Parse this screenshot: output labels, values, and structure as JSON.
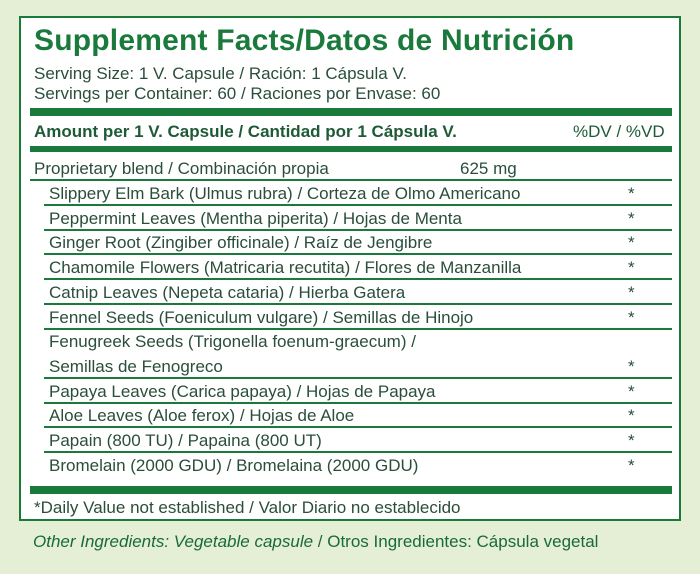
{
  "title": "Supplement Facts/Datos de Nutrición",
  "serving_size": "Serving Size: 1 V. Capsule / Ración: 1 Cápsula V.",
  "servings_per_container": "Servings per Container: 60 / Raciones por Envase: 60",
  "header": {
    "amount": "Amount per 1 V. Capsule / Cantidad por 1 Cápsula V.",
    "dv": "%DV / %VD"
  },
  "blend": {
    "name": "Proprietary blend / Combinación propia",
    "amount": "625 mg"
  },
  "ingredients": [
    {
      "name": "Slippery Elm Bark (Ulmus rubra) / Corteza de Olmo Americano",
      "dv": "*"
    },
    {
      "name": "Peppermint Leaves (Mentha piperita) / Hojas de Menta",
      "dv": "*"
    },
    {
      "name": "Ginger Root (Zingiber officinale) / Raíz de Jengibre",
      "dv": "*"
    },
    {
      "name": "Chamomile Flowers (Matricaria recutita) / Flores de Manzanilla",
      "dv": "*"
    },
    {
      "name": "Catnip Leaves (Nepeta cataria) / Hierba Gatera",
      "dv": "*"
    },
    {
      "name": "Fennel Seeds (Foeniculum vulgare) / Semillas de Hinojo",
      "dv": "*"
    },
    {
      "name": "Fenugreek Seeds (Trigonella foenum-graecum) /",
      "dv": ""
    },
    {
      "name": "Semillas de Fenogreco",
      "dv": "*"
    },
    {
      "name": "Papaya Leaves (Carica papaya) / Hojas de Papaya",
      "dv": "*"
    },
    {
      "name": "Aloe Leaves (Aloe ferox) / Hojas de Aloe",
      "dv": "*"
    },
    {
      "name": "Papain (800 TU) / Papaina (800 UT)",
      "dv": "*"
    },
    {
      "name": "Bromelain (2000 GDU) / Bromelaina (2000 GDU)",
      "dv": "*"
    }
  ],
  "footnote": "*Daily Value not established / Valor Diario no establecido",
  "other_ingredients": {
    "label": "Other Ingredients: Vegetable capsule",
    "separator": " / ",
    "text": "Otros Ingredientes: Cápsula vegetal"
  },
  "colors": {
    "brand_green": "#1a7a3c",
    "background": "#e4efd6",
    "text": "#2a4e3a"
  }
}
